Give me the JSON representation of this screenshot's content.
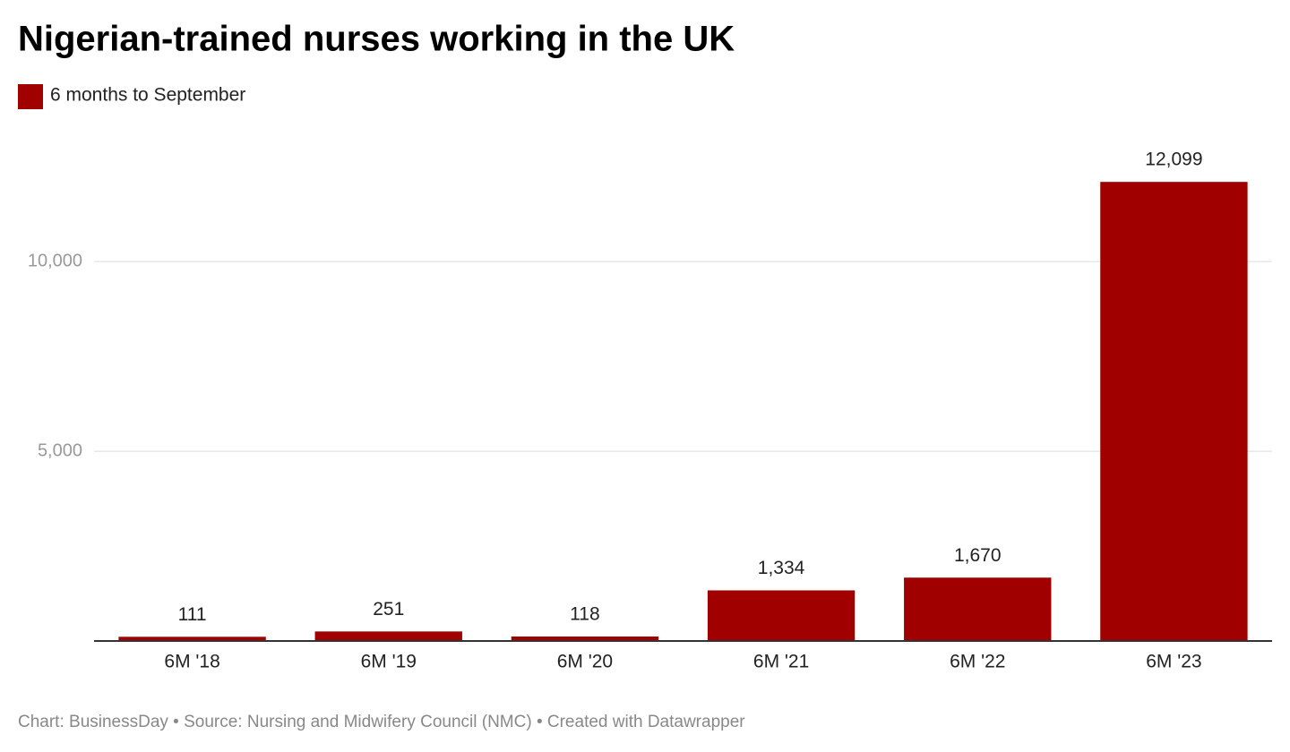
{
  "chart_data": {
    "type": "bar",
    "title": "Nigerian-trained nurses working in the UK",
    "series": [
      {
        "name": "6 months to September",
        "color": "#a10000",
        "values": [
          111,
          251,
          118,
          1334,
          1670,
          12099
        ],
        "value_labels": [
          "111",
          "251",
          "118",
          "1,334",
          "1,670",
          "12,099"
        ]
      }
    ],
    "categories": [
      "6M '18",
      "6M '19",
      "6M '20",
      "6M '21",
      "6M '22",
      "6M '23"
    ],
    "ylim": [
      0,
      13000
    ],
    "yticks": [
      {
        "value": 5000,
        "label": "5,000"
      },
      {
        "value": 10000,
        "label": "10,000"
      }
    ],
    "grid": true,
    "footer": "Chart: BusinessDay • Source: Nursing and Midwifery Council (NMC) • Created with Datawrapper"
  }
}
